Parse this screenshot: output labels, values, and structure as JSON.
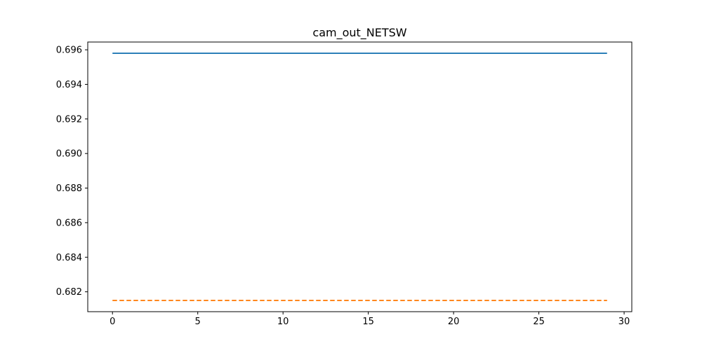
{
  "chart_data": {
    "type": "line",
    "title": "cam_out_NETSW",
    "xlabel": "",
    "ylabel": "",
    "xlim": [
      -1.45,
      30.45
    ],
    "ylim": [
      0.68085,
      0.69645
    ],
    "x_ticks": [
      0,
      5,
      10,
      15,
      20,
      25,
      30
    ],
    "x_tick_labels": [
      "0",
      "5",
      "10",
      "15",
      "20",
      "25",
      "30"
    ],
    "y_ticks": [
      0.682,
      0.684,
      0.686,
      0.688,
      0.69,
      0.692,
      0.694,
      0.696
    ],
    "y_tick_labels": [
      "0.682",
      "0.684",
      "0.686",
      "0.688",
      "0.690",
      "0.692",
      "0.694",
      "0.696"
    ],
    "grid": false,
    "legend": "none",
    "series": [
      {
        "style": "solid",
        "color": "#1f77b4",
        "x": [
          0,
          1,
          2,
          3,
          4,
          5,
          6,
          7,
          8,
          9,
          10,
          11,
          12,
          13,
          14,
          15,
          16,
          17,
          18,
          19,
          20,
          21,
          22,
          23,
          24,
          25,
          26,
          27,
          28,
          29
        ],
        "values": [
          0.6958,
          0.6958,
          0.6958,
          0.6958,
          0.6958,
          0.6958,
          0.6958,
          0.6958,
          0.6958,
          0.6958,
          0.6958,
          0.6958,
          0.6958,
          0.6958,
          0.6958,
          0.6958,
          0.6958,
          0.6958,
          0.6958,
          0.6958,
          0.6958,
          0.6958,
          0.6958,
          0.6958,
          0.6958,
          0.6958,
          0.6958,
          0.6958,
          0.6958,
          0.6958
        ]
      },
      {
        "style": "dashed",
        "color": "#ff7f0e",
        "x": [
          0,
          1,
          2,
          3,
          4,
          5,
          6,
          7,
          8,
          9,
          10,
          11,
          12,
          13,
          14,
          15,
          16,
          17,
          18,
          19,
          20,
          21,
          22,
          23,
          24,
          25,
          26,
          27,
          28,
          29
        ],
        "values": [
          0.6815,
          0.6815,
          0.6815,
          0.6815,
          0.6815,
          0.6815,
          0.6815,
          0.6815,
          0.6815,
          0.6815,
          0.6815,
          0.6815,
          0.6815,
          0.6815,
          0.6815,
          0.6815,
          0.6815,
          0.6815,
          0.6815,
          0.6815,
          0.6815,
          0.6815,
          0.6815,
          0.6815,
          0.6815,
          0.6815,
          0.6815,
          0.6815,
          0.6815,
          0.6815
        ]
      }
    ]
  }
}
